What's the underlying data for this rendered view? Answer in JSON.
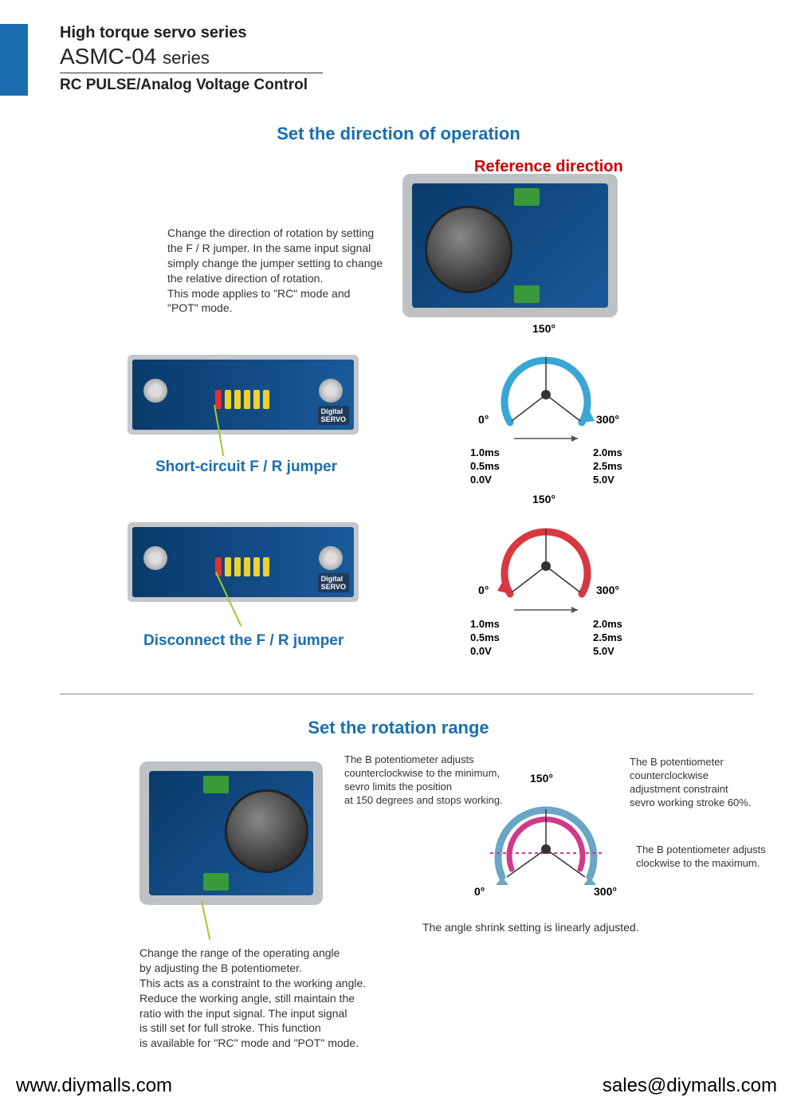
{
  "header": {
    "line1": "High torque servo series",
    "product": "ASMC-04",
    "suffix": "series",
    "line3": "RC PULSE/Analog Voltage Control"
  },
  "section1": {
    "title": "Set the direction of operation",
    "reference": "Reference direction",
    "body": "Change the direction of rotation by setting\nthe F / R jumper. In the same input signal\nsimply change the jumper setting to change\nthe relative direction of rotation.\nThis mode applies to \"RC\" mode and\n\"POT\" mode.",
    "jumper1": "Short-circuit F / R jumper",
    "jumper2": "Disconnect the F / R jumper"
  },
  "gauge": {
    "top": "150°",
    "left": "0°",
    "right": "300°",
    "col_left": "1.0ms\n0.5ms\n0.0V",
    "col_right": "2.0ms\n2.5ms\n5.0V",
    "colors": {
      "cw": "#d6393f",
      "ccw": "#3aa6d6",
      "arrow": "#555"
    }
  },
  "section2": {
    "title": "Set the rotation range",
    "body": "Change the range of the operating angle\nby adjusting the B potentiometer.\nThis acts as a constraint to the working angle.\nReduce the working angle, still maintain the\nratio with the input signal. The input signal\nis still set for full stroke. This function\nis available for \"RC\" mode and \"POT\" mode.",
    "note1": "The B potentiometer adjusts\ncounterclockwise to the minimum,\nsevro limits the position\nat 150 degrees and stops working.",
    "note2": "The B potentiometer\ncounterclockwise\nadjustment constraint\nsevro working stroke 60%.",
    "note3": "The B potentiometer adjusts\nclockwise to the maximum.",
    "linear": "The angle shrink setting is linearly adjusted."
  },
  "range_gauge": {
    "top": "150°",
    "left": "0°",
    "right": "300°",
    "colors": {
      "outer": "#6aa6c5",
      "inner": "#d03a8a",
      "dotted": "#d03a8a"
    }
  },
  "footer": {
    "left": "www.diymalls.com",
    "right": "sales@diymalls.com"
  },
  "pin_colors": [
    "#e03030",
    "#f0d030",
    "#f0d030",
    "#f0d030",
    "#f0d030",
    "#f0d030"
  ]
}
